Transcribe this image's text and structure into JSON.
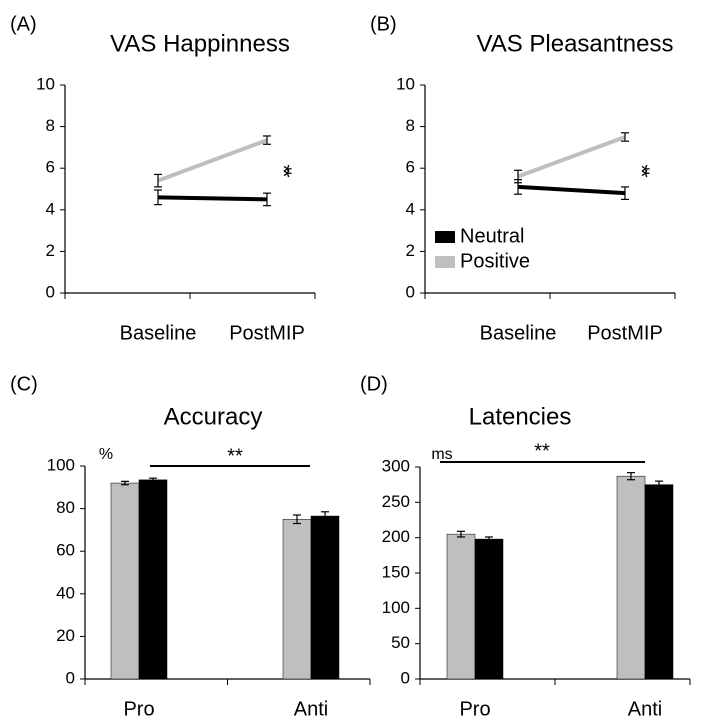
{
  "chart_data": [
    {
      "type": "line",
      "panel_label": "(A)",
      "title": "VAS Happinness",
      "categories": [
        "Baseline",
        "PostMIP"
      ],
      "series": [
        {
          "color": "#bfbfbf",
          "values": [
            5.4,
            7.35
          ],
          "errors": [
            0.3,
            0.2
          ]
        },
        {
          "color": "#000000",
          "values": [
            4.6,
            4.5
          ],
          "errors": [
            0.35,
            0.3
          ]
        }
      ],
      "ylim": [
        0,
        10
      ],
      "yticks": [
        0,
        2,
        4,
        6,
        8,
        10
      ],
      "annotation": "**"
    },
    {
      "type": "line",
      "panel_label": "(B)",
      "title": "VAS Pleasantness",
      "categories": [
        "Baseline",
        "PostMIP"
      ],
      "series": [
        {
          "name": "Positive",
          "color": "#bfbfbf",
          "values": [
            5.6,
            7.5
          ],
          "errors": [
            0.3,
            0.2
          ]
        },
        {
          "name": "Neutral",
          "color": "#000000",
          "values": [
            5.1,
            4.8
          ],
          "errors": [
            0.35,
            0.3
          ]
        }
      ],
      "ylim": [
        0,
        10
      ],
      "yticks": [
        0,
        2,
        4,
        6,
        8,
        10
      ],
      "annotation": "**",
      "legend": "lower-left"
    },
    {
      "type": "bar",
      "panel_label": "(C)",
      "title": "Accuracy",
      "unit_label": "%",
      "categories": [
        "Pro",
        "Anti"
      ],
      "series": [
        {
          "color": "#bfbfbf",
          "values": [
            92,
            75
          ],
          "errors": [
            0.8,
            2
          ]
        },
        {
          "color": "#000000",
          "values": [
            93.5,
            76.5
          ],
          "errors": [
            0.8,
            2
          ]
        }
      ],
      "ylim": [
        0,
        100
      ],
      "yticks": [
        0,
        20,
        40,
        60,
        80,
        100
      ],
      "annotation": "**"
    },
    {
      "type": "bar",
      "panel_label": "(D)",
      "title": "Latencies",
      "unit_label": "ms",
      "categories": [
        "Pro",
        "Anti"
      ],
      "series": [
        {
          "color": "#bfbfbf",
          "values": [
            205,
            287
          ],
          "errors": [
            4,
            5
          ]
        },
        {
          "color": "#000000",
          "values": [
            198,
            275
          ],
          "errors": [
            3,
            5
          ]
        }
      ],
      "ylim": [
        0,
        300
      ],
      "yticks": [
        0,
        50,
        100,
        150,
        200,
        250,
        300
      ],
      "annotation": "**"
    }
  ]
}
